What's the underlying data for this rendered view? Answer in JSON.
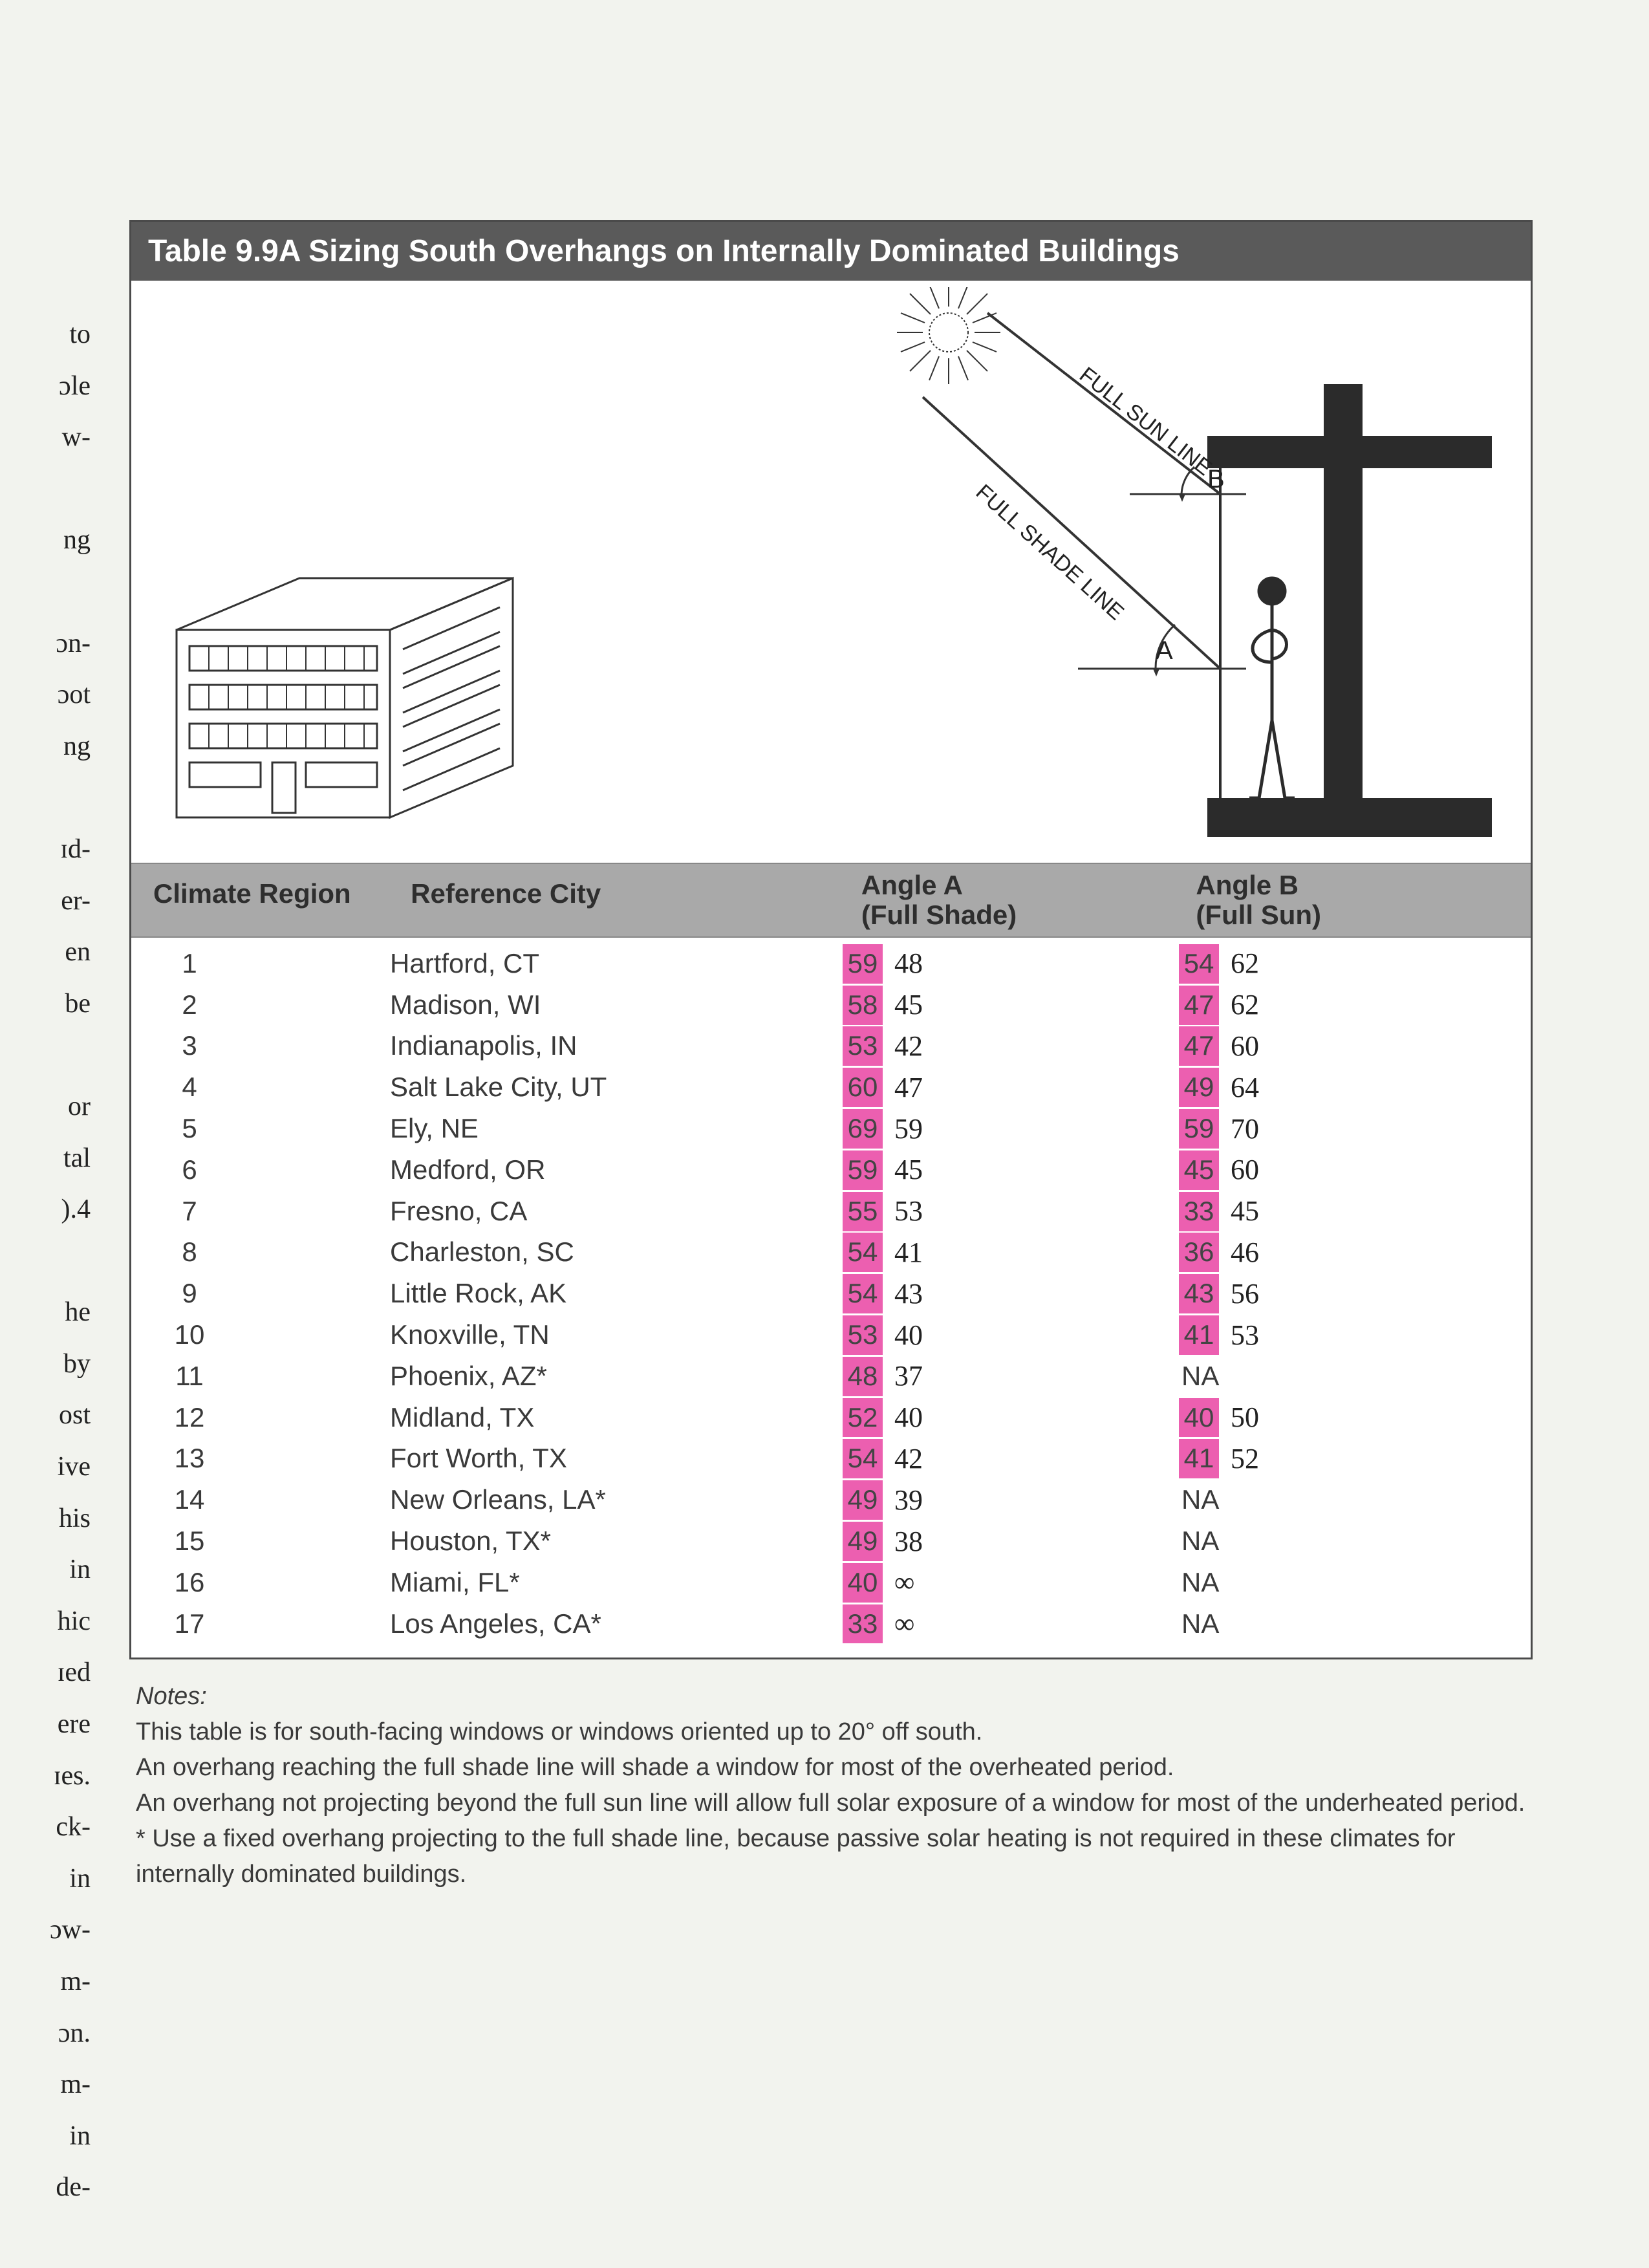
{
  "title": "Table 9.9A  Sizing South Overhangs on Internally Dominated Buildings",
  "diagram": {
    "full_sun_label": "FULL SUN LINE",
    "full_shade_label": "FULL SHADE LINE",
    "angle_a_label": "A",
    "angle_b_label": "B"
  },
  "headers": {
    "region": "Climate Region",
    "city": "Reference City",
    "angle_a_line1": "Angle A",
    "angle_a_line2": "(Full Shade)",
    "angle_b_line1": "Angle B",
    "angle_b_line2": "(Full Sun)"
  },
  "highlight_color": "#ec5fb0",
  "rows": [
    {
      "region": "1",
      "city": "Hartford, CT",
      "a_print": "59",
      "a_hand": "48",
      "b_print": "54",
      "b_hand": "62",
      "b_highlighted": true
    },
    {
      "region": "2",
      "city": "Madison, WI",
      "a_print": "58",
      "a_hand": "45",
      "b_print": "47",
      "b_hand": "62",
      "b_highlighted": true
    },
    {
      "region": "3",
      "city": "Indianapolis, IN",
      "a_print": "53",
      "a_hand": "42",
      "b_print": "47",
      "b_hand": "60",
      "b_highlighted": true
    },
    {
      "region": "4",
      "city": "Salt Lake City, UT",
      "a_print": "60",
      "a_hand": "47",
      "b_print": "49",
      "b_hand": "64",
      "b_highlighted": true
    },
    {
      "region": "5",
      "city": "Ely, NE",
      "a_print": "69",
      "a_hand": "59",
      "b_print": "59",
      "b_hand": "70",
      "b_highlighted": true
    },
    {
      "region": "6",
      "city": "Medford, OR",
      "a_print": "59",
      "a_hand": "45",
      "b_print": "45",
      "b_hand": "60",
      "b_highlighted": true
    },
    {
      "region": "7",
      "city": "Fresno, CA",
      "a_print": "55",
      "a_hand": "53",
      "b_print": "33",
      "b_hand": "45",
      "b_highlighted": true
    },
    {
      "region": "8",
      "city": "Charleston, SC",
      "a_print": "54",
      "a_hand": "41",
      "b_print": "36",
      "b_hand": "46",
      "b_highlighted": true
    },
    {
      "region": "9",
      "city": "Little Rock, AK",
      "a_print": "54",
      "a_hand": "43",
      "b_print": "43",
      "b_hand": "56",
      "b_highlighted": true
    },
    {
      "region": "10",
      "city": "Knoxville, TN",
      "a_print": "53",
      "a_hand": "40",
      "b_print": "41",
      "b_hand": "53",
      "b_highlighted": true
    },
    {
      "region": "11",
      "city": "Phoenix, AZ*",
      "a_print": "48",
      "a_hand": "37",
      "b_print": "NA",
      "b_hand": "",
      "b_highlighted": false
    },
    {
      "region": "12",
      "city": "Midland, TX",
      "a_print": "52",
      "a_hand": "40",
      "b_print": "40",
      "b_hand": "50",
      "b_highlighted": true
    },
    {
      "region": "13",
      "city": "Fort Worth, TX",
      "a_print": "54",
      "a_hand": "42",
      "b_print": "41",
      "b_hand": "52",
      "b_highlighted": true
    },
    {
      "region": "14",
      "city": "New Orleans, LA*",
      "a_print": "49",
      "a_hand": "39",
      "b_print": "NA",
      "b_hand": "",
      "b_highlighted": false
    },
    {
      "region": "15",
      "city": "Houston, TX*",
      "a_print": "49",
      "a_hand": "38",
      "b_print": "NA",
      "b_hand": "",
      "b_highlighted": false
    },
    {
      "region": "16",
      "city": "Miami, FL*",
      "a_print": "40",
      "a_hand": "∞",
      "b_print": "NA",
      "b_hand": "",
      "b_highlighted": false
    },
    {
      "region": "17",
      "city": "Los Angeles, CA*",
      "a_print": "33",
      "a_hand": "∞",
      "b_print": "NA",
      "b_hand": "",
      "b_highlighted": false
    }
  ],
  "notes_title": "Notes:",
  "notes": [
    "This table is for south-facing windows or windows oriented up to 20° off south.",
    "An overhang reaching the full shade line will shade a window for most of the overheated period.",
    "An overhang not projecting beyond the full sun line will allow full solar exposure of a window for most of the underheated period.",
    "* Use a fixed overhang projecting to the full shade line, because passive solar heating is not required in these climates for internally dominated buildings."
  ],
  "left_fragments": [
    "to",
    "ɔle",
    "w-",
    "",
    "ng",
    "",
    "ɔn-",
    "ɔot",
    "ng",
    "",
    "ɪd-",
    "er-",
    "en",
    "be",
    "",
    "or",
    "tal",
    ").4",
    "",
    "he",
    "by",
    "ost",
    "ive",
    "his",
    "in",
    "hic",
    "ɪed",
    "ere",
    "ɪes.",
    "ck-",
    "in",
    "ɔw-",
    "m-",
    "ɔn.",
    "m-",
    "in",
    "de-"
  ]
}
